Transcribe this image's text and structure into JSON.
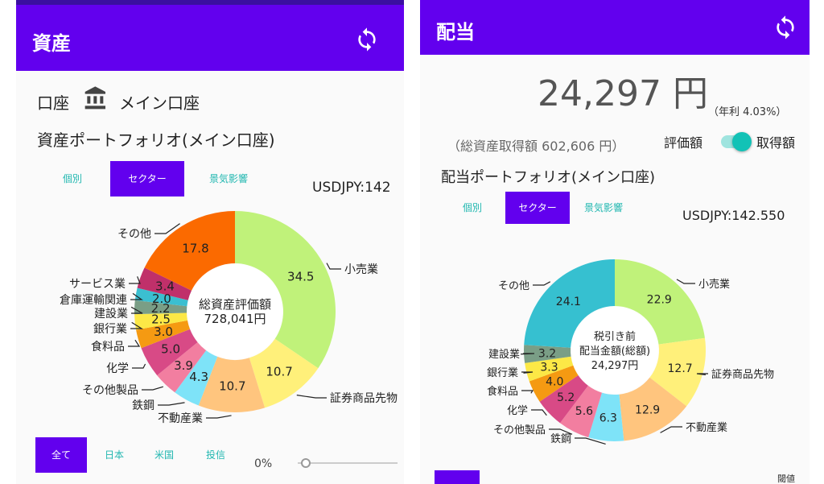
{
  "left": {
    "appbar_title": "資産",
    "account_label": "口座",
    "account_name": "メイン口座",
    "portfolio_title": "資産ポートフォリオ(メイン口座)",
    "tabs": [
      "個別",
      "セクター",
      "景気影響"
    ],
    "usdjpy": "USDJPY:142",
    "filter_tabs": [
      "全て",
      "日本",
      "米国",
      "投信"
    ],
    "slider_value": "0%",
    "icons": {
      "sync": "sync-icon",
      "bank": "bank-icon"
    },
    "chart_data": {
      "type": "pie",
      "center_label": [
        "総資産評価額",
        "728,041円"
      ],
      "series": [
        {
          "name": "小売業",
          "value": 34.5,
          "color": "#c0f27a"
        },
        {
          "name": "証券商品先物",
          "value": 10.7,
          "color": "#fff07a"
        },
        {
          "name": "不動産業",
          "value": 10.7,
          "color": "#ffc57e"
        },
        {
          "name": "鉄鋼",
          "value": 4.3,
          "color": "#7ee3f8"
        },
        {
          "name": "その他製品",
          "value": 3.9,
          "color": "#f27ea0"
        },
        {
          "name": "化学",
          "value": 5.0,
          "color": "#d84a86"
        },
        {
          "name": "食料品",
          "value": 3.0,
          "color": "#f59a12"
        },
        {
          "name": "銀行業",
          "value": 2.5,
          "color": "#fce846"
        },
        {
          "name": "建設業",
          "value": 2.2,
          "color": "#7a9e86"
        },
        {
          "name": "倉庫運輸関連",
          "value": 2.0,
          "color": "#3bbfd0"
        },
        {
          "name": "サービス業",
          "value": 3.4,
          "color": "#c0306a"
        },
        {
          "name": "その他",
          "value": 17.8,
          "color": "#fb6a00"
        }
      ]
    }
  },
  "right": {
    "appbar_title": "配当",
    "dividend_amount": "24,297 円",
    "yield_text": "（年利 4.03%）",
    "acquisition_text": "（総資産取得額 602,606 円）",
    "toggle_off_label": "評価額",
    "toggle_on_label": "取得額",
    "portfolio_title": "配当ポートフォリオ(メイン口座)",
    "tabs": [
      "個別",
      "セクター",
      "景気影響"
    ],
    "usdjpy": "USDJPY:142.550",
    "threshold_label": "閾値",
    "icons": {
      "sync": "sync-icon"
    },
    "chart_data": {
      "type": "pie",
      "center_label": [
        "税引き前",
        "配当金額(総額)",
        "24,297円"
      ],
      "series": [
        {
          "name": "小売業",
          "value": 22.9,
          "color": "#c0f27a"
        },
        {
          "name": "証券商品先物",
          "value": 12.7,
          "color": "#fff07a"
        },
        {
          "name": "不動産業",
          "value": 12.9,
          "color": "#ffc57e"
        },
        {
          "name": "鉄鋼",
          "value": 6.3,
          "color": "#7ee3f8"
        },
        {
          "name": "その他製品",
          "value": 5.6,
          "color": "#f27ea0"
        },
        {
          "name": "化学",
          "value": 5.2,
          "color": "#d84a86"
        },
        {
          "name": "食料品",
          "value": 4.0,
          "color": "#f59a12"
        },
        {
          "name": "銀行業",
          "value": 3.3,
          "color": "#fce846"
        },
        {
          "name": "建設業",
          "value": 3.2,
          "color": "#7a9e86"
        },
        {
          "name": "その他",
          "value": 24.1,
          "color": "#36c0d0"
        }
      ]
    }
  }
}
